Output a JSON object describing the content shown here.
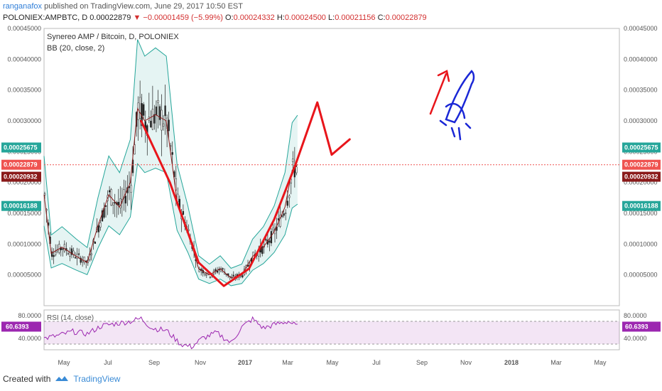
{
  "header": {
    "author": "ranganafox",
    "published": " published on TradingView.com, June 29, 2017 10:50 EST",
    "symbol": "POLONIEX:AMPBTC, D",
    "o_label": "O:",
    "o_value": "0.00024332",
    "h_label": "H:",
    "h_value": "0.00024500",
    "l_label": "L:",
    "l_value": "0.00021156",
    "c_label": "C:",
    "c_value": "0.00022879",
    "change_last": "0.00022879",
    "change": "▼ −0.00001459 (−5.99%)"
  },
  "footer": {
    "created_with": "Created with",
    "brand": "TradingView"
  },
  "chart_data": {
    "type": "candlestick",
    "title": "Synereo AMP / Bitcoin, D, POLONIEX",
    "indicator_label": "BB (20, close, 2)",
    "rsi_label": "RSI (14, close)",
    "x_ticks": [
      "May",
      "Jul",
      "Sep",
      "Nov",
      "2017",
      "Mar",
      "May",
      "Jul",
      "Sep",
      "Nov",
      "2018",
      "Mar",
      "May"
    ],
    "y_ticks": [
      "0.00005000",
      "0.00010000",
      "0.00015000",
      "0.00020000",
      "0.00025000",
      "0.00030000",
      "0.00035000",
      "0.00040000",
      "0.00045000"
    ],
    "ylim": [
      0,
      0.00045
    ],
    "price_tags": [
      {
        "value": "0.00025675",
        "color": "#26a69a"
      },
      {
        "value": "0.00022879",
        "color": "#ef5350"
      },
      {
        "value": "0.00020932",
        "color": "#8b1a1a"
      },
      {
        "value": "0.00016188",
        "color": "#26a69a"
      }
    ],
    "last_price": 0.00022879,
    "rsi_ticks": [
      "80.0000",
      "40.0000"
    ],
    "rsi_value": "60.6393",
    "rsi_band": [
      30,
      70
    ],
    "price_series": [
      {
        "x": 0,
        "y": 0.00018
      },
      {
        "x": 4,
        "y": 8.5e-05
      },
      {
        "x": 10,
        "y": 9.5e-05
      },
      {
        "x": 18,
        "y": 8e-05
      },
      {
        "x": 24,
        "y": 7e-05
      },
      {
        "x": 30,
        "y": 0.00013
      },
      {
        "x": 36,
        "y": 0.00018
      },
      {
        "x": 42,
        "y": 0.00016
      },
      {
        "x": 48,
        "y": 0.0002
      },
      {
        "x": 52,
        "y": 0.00032
      },
      {
        "x": 56,
        "y": 0.0003
      },
      {
        "x": 62,
        "y": 0.00031
      },
      {
        "x": 68,
        "y": 0.0003
      },
      {
        "x": 74,
        "y": 0.00017
      },
      {
        "x": 80,
        "y": 0.00012
      },
      {
        "x": 86,
        "y": 6e-05
      },
      {
        "x": 92,
        "y": 5e-05
      },
      {
        "x": 98,
        "y": 6e-05
      },
      {
        "x": 104,
        "y": 4.5e-05
      },
      {
        "x": 110,
        "y": 5e-05
      },
      {
        "x": 116,
        "y": 8e-05
      },
      {
        "x": 122,
        "y": 9.5e-05
      },
      {
        "x": 128,
        "y": 0.00012
      },
      {
        "x": 134,
        "y": 0.00016
      },
      {
        "x": 138,
        "y": 0.00022
      },
      {
        "x": 141,
        "y": 0.000229
      }
    ],
    "projection_curve": [
      {
        "x": 54,
        "y": 0.0003
      },
      {
        "x": 70,
        "y": 0.0002
      },
      {
        "x": 86,
        "y": 7e-05
      },
      {
        "x": 100,
        "y": 3.2e-05
      },
      {
        "x": 114,
        "y": 6e-05
      },
      {
        "x": 128,
        "y": 0.00014
      },
      {
        "x": 140,
        "y": 0.00023
      },
      {
        "x": 152,
        "y": 0.00033
      },
      {
        "x": 160,
        "y": 0.000245
      },
      {
        "x": 170,
        "y": 0.00027
      }
    ],
    "rsi_series": [
      {
        "x": 0,
        "y": 40
      },
      {
        "x": 8,
        "y": 45
      },
      {
        "x": 16,
        "y": 52
      },
      {
        "x": 24,
        "y": 48
      },
      {
        "x": 32,
        "y": 62
      },
      {
        "x": 40,
        "y": 66
      },
      {
        "x": 48,
        "y": 70
      },
      {
        "x": 54,
        "y": 75
      },
      {
        "x": 60,
        "y": 58
      },
      {
        "x": 68,
        "y": 54
      },
      {
        "x": 76,
        "y": 30
      },
      {
        "x": 82,
        "y": 25
      },
      {
        "x": 88,
        "y": 40
      },
      {
        "x": 96,
        "y": 50
      },
      {
        "x": 104,
        "y": 32
      },
      {
        "x": 110,
        "y": 60
      },
      {
        "x": 116,
        "y": 74
      },
      {
        "x": 122,
        "y": 58
      },
      {
        "x": 130,
        "y": 66
      },
      {
        "x": 136,
        "y": 70
      },
      {
        "x": 141,
        "y": 60.64
      }
    ]
  }
}
